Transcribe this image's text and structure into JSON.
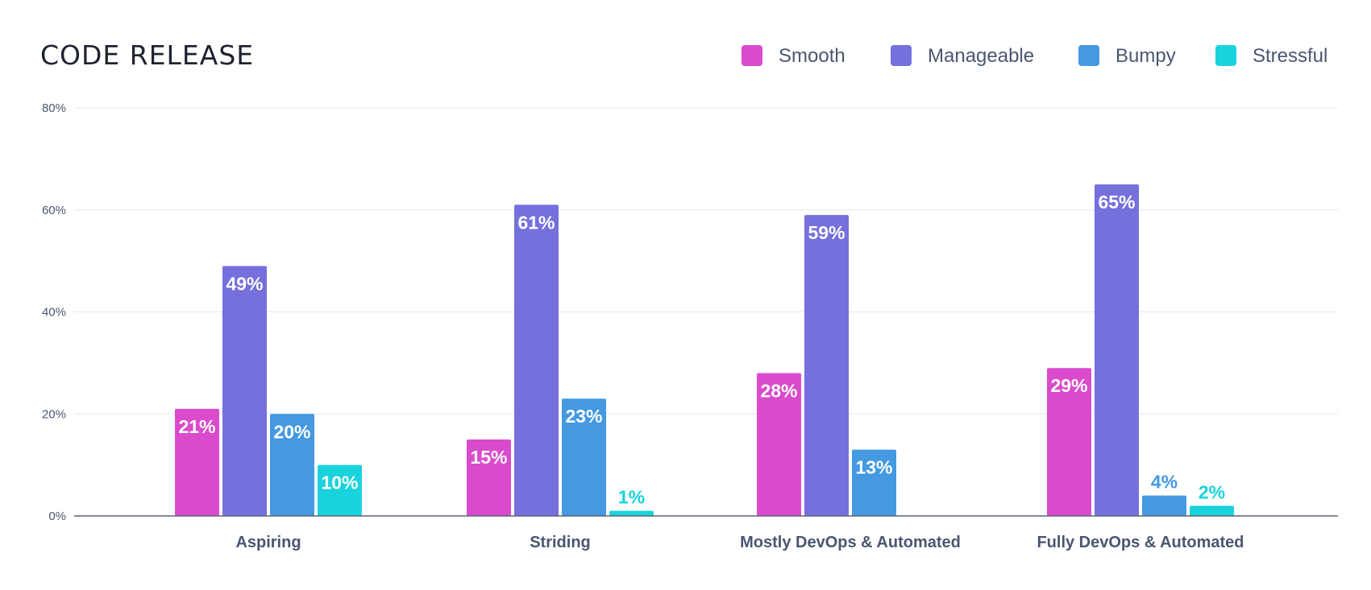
{
  "chart_data": {
    "type": "bar",
    "title": "CODE RELEASE",
    "categories": [
      "Aspiring",
      "Striding",
      "Mostly DevOps & Automated",
      "Fully DevOps & Automated"
    ],
    "series": [
      {
        "name": "Smooth",
        "color": "#d94bcc",
        "values": [
          21,
          15,
          28,
          29
        ],
        "labels": [
          "21%",
          "15%",
          "28%",
          "29%"
        ]
      },
      {
        "name": "Manageable",
        "color": "#7570dc",
        "values": [
          49,
          61,
          59,
          65
        ],
        "labels": [
          "49%",
          "61%",
          "59%",
          "65%"
        ]
      },
      {
        "name": "Bumpy",
        "color": "#4499e0",
        "values": [
          20,
          23,
          13,
          4
        ],
        "labels": [
          "20%",
          "23%",
          "13%",
          "4%"
        ]
      },
      {
        "name": "Stressful",
        "color": "#19d3dc",
        "values": [
          10,
          1,
          null,
          2
        ],
        "labels": [
          "10%",
          "1%",
          "",
          "2%"
        ]
      }
    ],
    "yticks": [
      "0%",
      "20%",
      "40%",
      "60%",
      "80%"
    ],
    "ylim": [
      0,
      80
    ],
    "grid": true,
    "legend_position": "top-right",
    "xlabel": "",
    "ylabel": ""
  }
}
